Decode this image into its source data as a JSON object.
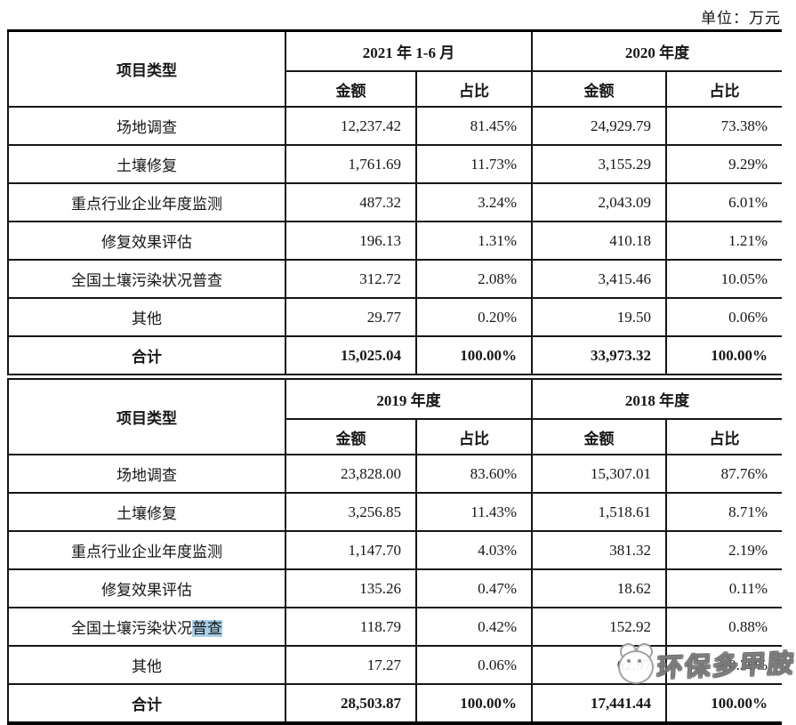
{
  "page": {
    "unit_label": "单位：万元"
  },
  "colors": {
    "highlight": "#a8cfe8",
    "table_border": "#161616",
    "background": "#ffffff"
  },
  "watermark": {
    "text": "环保多甲胺",
    "logo": "mascot-face-icon"
  },
  "tables": [
    {
      "row_header": "项目类型",
      "periods": [
        "2021 年 1-6 月",
        "2020 年度"
      ],
      "subheaders": [
        "金额",
        "占比",
        "金额",
        "占比"
      ],
      "rows": [
        {
          "label": "场地调查",
          "values": [
            "12,237.42",
            "81.45%",
            "24,929.79",
            "73.38%"
          ]
        },
        {
          "label": "土壤修复",
          "values": [
            "1,761.69",
            "11.73%",
            "3,155.29",
            "9.29%"
          ]
        },
        {
          "label": "重点行业企业年度监测",
          "values": [
            "487.32",
            "3.24%",
            "2,043.09",
            "6.01%"
          ]
        },
        {
          "label": "修复效果评估",
          "values": [
            "196.13",
            "1.31%",
            "410.18",
            "1.21%"
          ]
        },
        {
          "label": "全国土壤污染状况普查",
          "values": [
            "312.72",
            "2.08%",
            "3,415.46",
            "10.05%"
          ]
        },
        {
          "label": "其他",
          "values": [
            "29.77",
            "0.20%",
            "19.50",
            "0.06%"
          ]
        },
        {
          "label": "合计",
          "values": [
            "15,025.04",
            "100.00%",
            "33,973.32",
            "100.00%"
          ],
          "is_total": true
        }
      ]
    },
    {
      "row_header": "项目类型",
      "periods": [
        "2019 年度",
        "2018 年度"
      ],
      "subheaders": [
        "金额",
        "占比",
        "金额",
        "占比"
      ],
      "rows": [
        {
          "label": "场地调查",
          "values": [
            "23,828.00",
            "83.60%",
            "15,307.01",
            "87.76%"
          ]
        },
        {
          "label": "土壤修复",
          "values": [
            "3,256.85",
            "11.43%",
            "1,518.61",
            "8.71%"
          ]
        },
        {
          "label": "重点行业企业年度监测",
          "values": [
            "1,147.70",
            "4.03%",
            "381.32",
            "2.19%"
          ]
        },
        {
          "label": "修复效果评估",
          "values": [
            "135.26",
            "0.47%",
            "18.62",
            "0.11%"
          ]
        },
        {
          "label_prefix": "全国土壤污染状况",
          "label_highlight": "普查",
          "values": [
            "118.79",
            "0.42%",
            "152.92",
            "0.88%"
          ]
        },
        {
          "label": "其他",
          "values": [
            "17.27",
            "0.06%",
            "62.97",
            "0.36%"
          ]
        },
        {
          "label": "合计",
          "values": [
            "28,503.87",
            "100.00%",
            "17,441.44",
            "100.00%"
          ],
          "is_total": true
        }
      ]
    }
  ]
}
